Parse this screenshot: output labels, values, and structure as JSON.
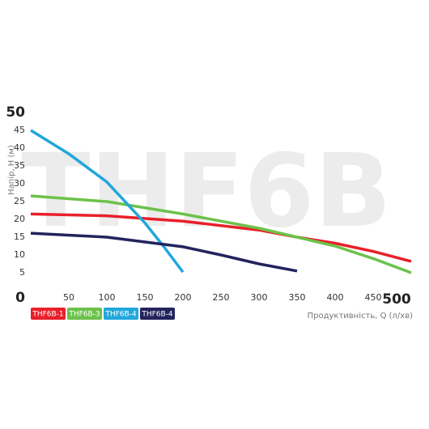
{
  "chart_data": {
    "type": "line",
    "watermark": "THF6B",
    "y_label": "Напір, H (м)",
    "x_label": "Продуктивність, Q (л/хв)",
    "xlim": [
      0,
      500
    ],
    "ylim": [
      0,
      50
    ],
    "xticks": [
      50,
      100,
      150,
      200,
      250,
      300,
      350,
      400,
      450,
      500
    ],
    "yticks": [
      0,
      5,
      10,
      15,
      20,
      25,
      30,
      35,
      40,
      45,
      50
    ],
    "grid": false,
    "series": [
      {
        "name": "THF6B-1",
        "color": "#e8202a",
        "x": [
          0,
          100,
          200,
          300,
          350,
          400,
          450,
          500
        ],
        "values": [
          21.5,
          21,
          19.5,
          17,
          15,
          13.3,
          11,
          8.2
        ]
      },
      {
        "name": "THF6B-3",
        "color": "#6cc24a",
        "x": [
          0,
          100,
          200,
          300,
          350,
          400,
          450,
          500
        ],
        "values": [
          26.6,
          25,
          21.5,
          17.5,
          15,
          12.5,
          9,
          5
        ]
      },
      {
        "name": "THF6B-4",
        "color": "#21a7dc",
        "x": [
          0,
          50,
          100,
          150,
          175,
          200
        ],
        "values": [
          45,
          38.4,
          30.5,
          19,
          12.3,
          5.2
        ]
      },
      {
        "name": "THF6B-4",
        "color": "#23235e",
        "x": [
          0,
          100,
          200,
          250,
          300,
          350
        ],
        "values": [
          16.1,
          15,
          12.3,
          10,
          7.5,
          5.5
        ]
      }
    ]
  }
}
